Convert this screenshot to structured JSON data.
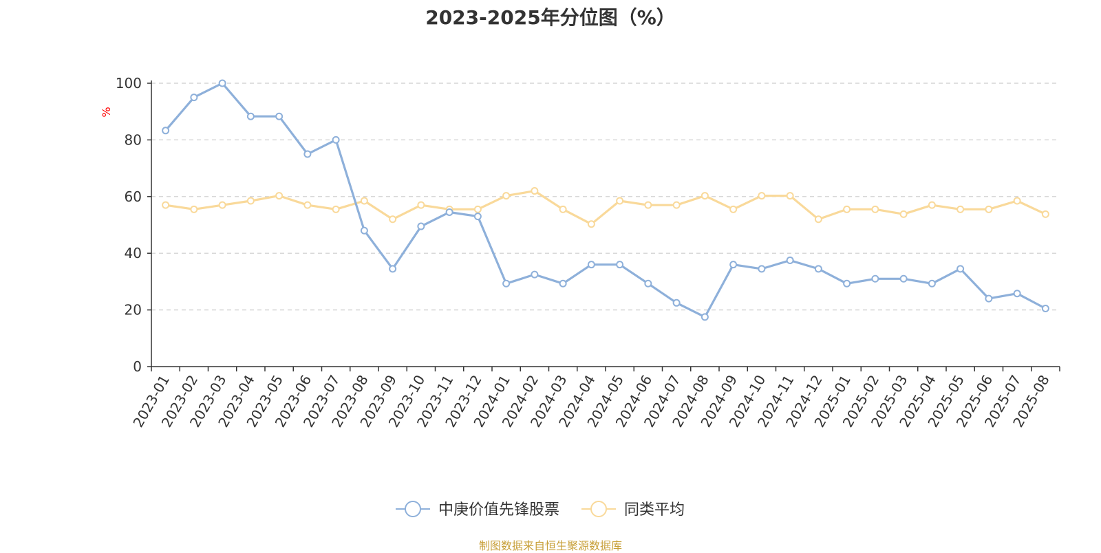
{
  "source_note": "制图数据来自恒生聚源数据库",
  "chart_data": {
    "type": "line",
    "title": "2023-2025年分位图（%）",
    "ylabel": "%",
    "xlabel": "",
    "ylim": [
      0,
      100
    ],
    "yticks": [
      0,
      20,
      40,
      60,
      80,
      100
    ],
    "grid": true,
    "legend_position": "bottom-center",
    "categories": [
      "2023-01",
      "2023-02",
      "2023-03",
      "2023-04",
      "2023-05",
      "2023-06",
      "2023-07",
      "2023-08",
      "2023-09",
      "2023-10",
      "2023-11",
      "2023-12",
      "2024-01",
      "2024-02",
      "2024-03",
      "2024-04",
      "2024-05",
      "2024-06",
      "2024-07",
      "2024-08",
      "2024-09",
      "2024-10",
      "2024-11",
      "2024-12",
      "2025-01",
      "2025-02",
      "2025-03",
      "2025-04",
      "2025-05",
      "2025-06",
      "2025-07",
      "2025-08"
    ],
    "series": [
      {
        "name": "中庚价值先锋股票",
        "color": "#8eb0da",
        "values": [
          83.3,
          95.0,
          100,
          88.3,
          88.3,
          75.0,
          80.0,
          48.0,
          34.5,
          49.5,
          54.5,
          53.0,
          29.3,
          32.5,
          29.3,
          36.0,
          36.0,
          29.3,
          22.5,
          17.5,
          36.0,
          34.5,
          37.5,
          34.5,
          29.3,
          31.0,
          31.0,
          29.3,
          34.5,
          24.0,
          25.8,
          20.5
        ]
      },
      {
        "name": "同类平均",
        "color": "#f9d99a",
        "values": [
          57.0,
          55.5,
          57.0,
          58.5,
          60.3,
          57.0,
          55.5,
          58.5,
          52.0,
          57.0,
          55.5,
          55.5,
          60.3,
          62.0,
          55.5,
          50.3,
          58.5,
          57.0,
          57.0,
          60.3,
          55.5,
          60.3,
          60.3,
          52.0,
          55.5,
          55.5,
          53.8,
          57.0,
          55.5,
          55.5,
          58.5,
          53.8
        ]
      }
    ]
  },
  "colors": {
    "axis_unit_label": "#ff0000",
    "source_note": "#c8a03a"
  }
}
